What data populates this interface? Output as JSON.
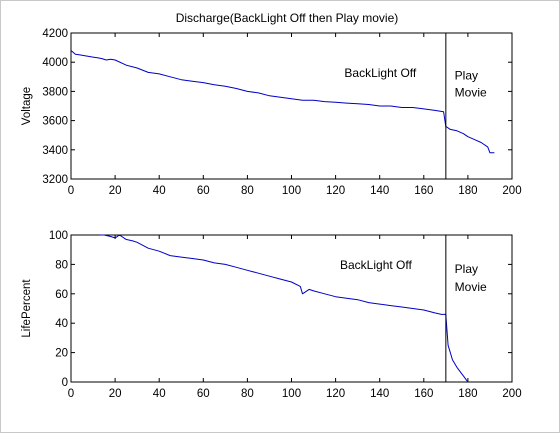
{
  "figure": {
    "title": "Discharge(BackLight Off then Play movie)"
  },
  "chart_data": [
    {
      "type": "line",
      "ylabel": "Voltage",
      "xlabel": "",
      "xlim": [
        0,
        200
      ],
      "ylim": [
        3200,
        4200
      ],
      "xticks": [
        "0",
        "20",
        "40",
        "60",
        "80",
        "100",
        "120",
        "140",
        "160",
        "180",
        "200"
      ],
      "yticks": [
        "3200",
        "3400",
        "3600",
        "3800",
        "4000",
        "4200"
      ],
      "series_color": "#0000c8",
      "series": [
        {
          "x": [
            0,
            2,
            4,
            6,
            8,
            10,
            12,
            14,
            16,
            18,
            20,
            25,
            30,
            35,
            40,
            45,
            50,
            55,
            60,
            65,
            70,
            75,
            80,
            85,
            90,
            95,
            100,
            105,
            110,
            115,
            120,
            125,
            130,
            135,
            140,
            145,
            150,
            155,
            160,
            165,
            169,
            170,
            172,
            175,
            178,
            180,
            183,
            186,
            189,
            190,
            192
          ],
          "y": [
            4080,
            4055,
            4050,
            4045,
            4040,
            4035,
            4030,
            4025,
            4015,
            4020,
            4015,
            3980,
            3960,
            3930,
            3920,
            3900,
            3880,
            3870,
            3860,
            3845,
            3835,
            3820,
            3800,
            3790,
            3770,
            3760,
            3750,
            3740,
            3740,
            3730,
            3725,
            3720,
            3715,
            3710,
            3700,
            3700,
            3690,
            3690,
            3680,
            3670,
            3660,
            3560,
            3540,
            3530,
            3510,
            3490,
            3470,
            3450,
            3420,
            3380,
            3380
          ]
        }
      ],
      "vline_x": 170,
      "annotations": [
        {
          "text": "BackLight Off",
          "x": 124,
          "y": 3900
        },
        {
          "text": "Play",
          "x": 174,
          "y": 3880
        },
        {
          "text": "Movie",
          "x": 174,
          "y": 3765
        }
      ]
    },
    {
      "type": "line",
      "ylabel": "LifePercent",
      "xlabel": "",
      "xlim": [
        0,
        200
      ],
      "ylim": [
        0,
        100
      ],
      "xticks": [
        "0",
        "20",
        "40",
        "60",
        "80",
        "100",
        "120",
        "140",
        "160",
        "180",
        "200"
      ],
      "yticks": [
        "0",
        "20",
        "40",
        "60",
        "80",
        "100"
      ],
      "series_color": "#0000c8",
      "series": [
        {
          "x": [
            13,
            15,
            18,
            20,
            22,
            25,
            28,
            30,
            35,
            40,
            45,
            50,
            55,
            60,
            65,
            70,
            75,
            80,
            85,
            90,
            95,
            100,
            104,
            105,
            108,
            110,
            115,
            120,
            125,
            130,
            135,
            140,
            145,
            150,
            155,
            160,
            165,
            168,
            169,
            170,
            171,
            173,
            175,
            176,
            177,
            178,
            179,
            180
          ],
          "y": [
            100,
            100,
            99,
            98,
            100,
            97,
            96,
            95,
            91,
            89,
            86,
            85,
            84,
            83,
            81,
            80,
            78,
            76,
            74,
            72,
            70,
            68,
            65,
            60,
            63,
            62,
            60,
            58,
            57,
            56,
            54,
            53,
            52,
            51,
            50,
            49,
            47,
            46,
            46,
            46,
            25,
            15,
            10,
            8,
            6,
            4,
            2,
            0
          ]
        }
      ],
      "vline_x": 170,
      "annotations": [
        {
          "text": "BackLight Off",
          "x": 122,
          "y": 77
        },
        {
          "text": "Play",
          "x": 174,
          "y": 74
        },
        {
          "text": "Movie",
          "x": 174,
          "y": 62
        }
      ]
    }
  ]
}
